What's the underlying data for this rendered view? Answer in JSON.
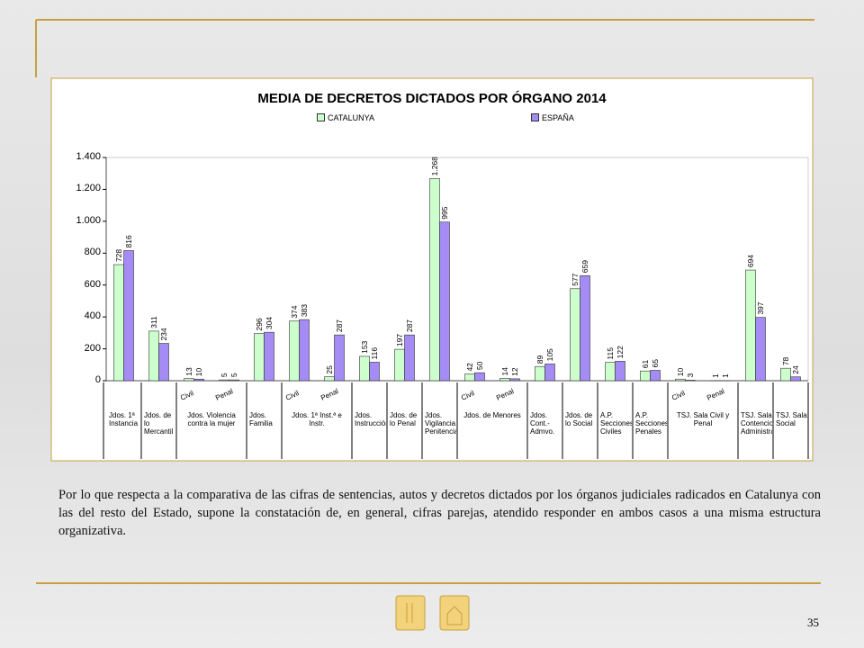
{
  "chart_data": {
    "type": "bar",
    "title": "MEDIA DE DECRETOS DICTADOS POR ÓRGANO 2014",
    "categories": [
      "Jdos. 1ª Instancia",
      "Jdos. de lo Mercantil",
      "Civil",
      "Penal",
      "Jdos. Familia",
      "Civil",
      "Penal",
      "Jdos. Instrucción",
      "Jdos. de lo Penal",
      "Jdos. Vigilancia Penitenciaria",
      "Civil",
      "Penal",
      "Jdos. Cont.-Admvo.",
      "Jdos. de lo Social",
      "A.P. Secciones Civiles",
      "A.P. Secciones Penales",
      "Civil",
      "Penal",
      "TSJ. Sala Contencioso-Administrativo",
      "TSJ. Sala Social"
    ],
    "category_groups": [
      null,
      null,
      "Jdos. Violencia contra la mujer",
      null,
      null,
      "Jdos. 1ª Inst.ª e Instr.",
      null,
      null,
      null,
      null,
      "Jdos. de Menores",
      null,
      null,
      null,
      null,
      null,
      "TSJ. Sala Civil y Penal",
      null,
      null,
      null
    ],
    "series": [
      {
        "name": "CATALUNYA",
        "color": "#ccffcc",
        "values": [
          728,
          311,
          13,
          5,
          296,
          374,
          25,
          153,
          197,
          1268,
          42,
          14,
          89,
          577,
          115,
          61,
          10,
          1,
          694,
          78
        ],
        "value_labels": [
          "728",
          "311",
          "13",
          "5",
          "296",
          "374",
          "25",
          "153",
          "197",
          "1.268",
          "42",
          "14",
          "89",
          "577",
          "115",
          "61",
          "10",
          "1",
          "694",
          "78"
        ]
      },
      {
        "name": "ESPAÑA",
        "color": "#a58cf5",
        "values": [
          816,
          234,
          10,
          5,
          304,
          383,
          287,
          116,
          287,
          995,
          50,
          12,
          105,
          659,
          122,
          65,
          3,
          1,
          397,
          24
        ]
      }
    ],
    "ylim": [
      0,
      1400
    ],
    "yticks": [
      0,
      200,
      400,
      600,
      800,
      {
        "value": 1000,
        "label": "1.000"
      },
      {
        "value": 1200,
        "label": "1.200"
      },
      {
        "value": 1400,
        "label": "1.400"
      }
    ],
    "grid": false,
    "legend": "top"
  },
  "body_text": "Por lo que respecta a la comparativa de las cifras de sentencias, autos y decretos dictados por los órganos judiciales radicados en Catalunya con las del resto del Estado,  supone la constatación de,  en general,  cifras parejas, atendido responder en ambos casos a una misma estructura organizativa.",
  "page_number": "35"
}
